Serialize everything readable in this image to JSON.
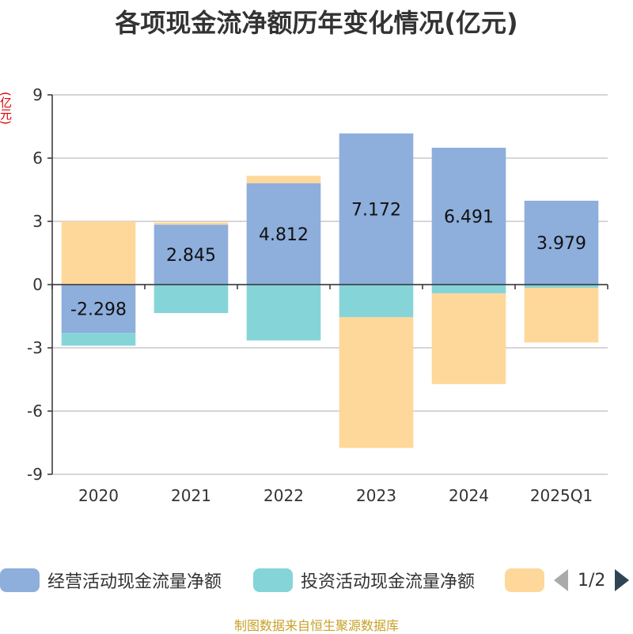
{
  "chart_data": {
    "type": "bar",
    "stacked": true,
    "title": "各项现金流净额历年变化情况(亿元)",
    "ylabel": "(亿元)",
    "categories": [
      "2020",
      "2021",
      "2022",
      "2023",
      "2024",
      "2025Q1"
    ],
    "ylim": [
      -9,
      9
    ],
    "yticks": [
      9,
      6,
      3,
      0,
      -3,
      -6,
      -9
    ],
    "grid": true,
    "series": [
      {
        "name": "经营活动现金流量净额",
        "color": "#8eaedc",
        "values": [
          -2.298,
          2.845,
          4.812,
          7.172,
          6.491,
          3.979
        ],
        "data_labels": [
          "-2.298",
          "2.845",
          "4.812",
          "7.172",
          "6.491",
          "3.979"
        ]
      },
      {
        "name": "投资活动现金流量净额",
        "color": "#85d5d8",
        "values": [
          -0.6,
          -1.35,
          -2.65,
          -1.55,
          -0.42,
          -0.15
        ]
      },
      {
        "name": "",
        "color": "#fed89a",
        "values": [
          3.0,
          0.1,
          0.35,
          -6.2,
          -4.3,
          -2.6
        ]
      }
    ]
  },
  "legend": {
    "items": [
      "经营活动现金流量净额",
      "投资活动现金流量净额",
      ""
    ],
    "page_indicator": "1/2"
  },
  "source_text": "制图数据来自恒生聚源数据库"
}
